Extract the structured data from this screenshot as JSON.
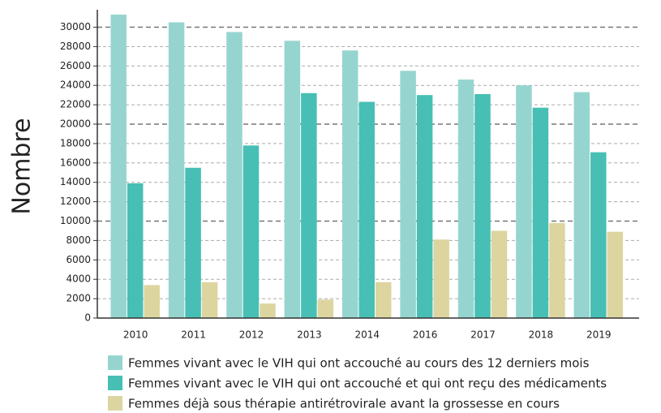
{
  "chart_data": {
    "type": "bar",
    "y_label": "Nombre",
    "categories": [
      "2010",
      "2011",
      "2012",
      "2013",
      "2014",
      "2016",
      "2017",
      "2018",
      "2019"
    ],
    "series": [
      {
        "name": "Femmes vivant avec le VIH qui ont accouché au cours des 12 derniers mois",
        "color": "#96d5cf",
        "values": [
          31300,
          30500,
          29500,
          28600,
          27600,
          25500,
          24600,
          24000,
          23300
        ]
      },
      {
        "name": "Femmes vivant avec le VIH qui ont accouché et qui ont reçu des médicaments",
        "color": "#47bfb4",
        "values": [
          13900,
          15500,
          17800,
          23200,
          22300,
          23000,
          23100,
          21700,
          17100
        ]
      },
      {
        "name": "Femmes déjà sous thérapie antirétrovirale avant la grossesse en cours",
        "color": "#dcd59f",
        "values": [
          3400,
          3700,
          1500,
          1900,
          3700,
          8100,
          9000,
          9800,
          8900
        ]
      }
    ],
    "ylim": [
      0,
      31800
    ],
    "yticks": [
      0,
      2000,
      4000,
      6000,
      8000,
      10000,
      12000,
      14000,
      16000,
      18000,
      20000,
      22000,
      24000,
      26000,
      28000,
      30000
    ],
    "grid": true
  }
}
